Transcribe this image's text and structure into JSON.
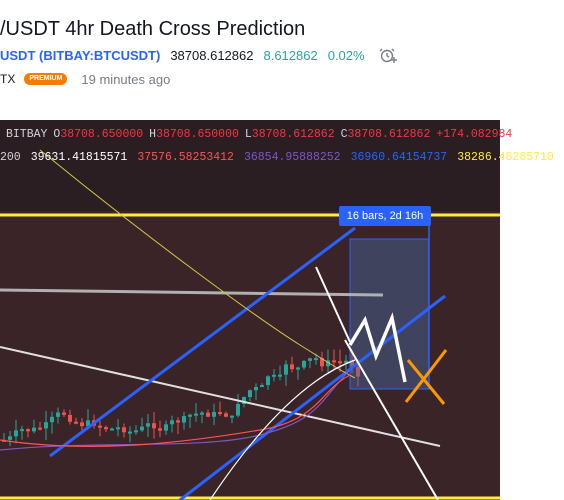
{
  "header": {
    "title": "/USDT 4hr Death Cross Prediction",
    "symbol": "USDT (BITBAY:BTCUSDT)",
    "price": "38708.612862",
    "change": "8.612862",
    "change_pct": "0.02%",
    "author": "TX",
    "badge": "PREMIUM",
    "time_ago": "19 minutes ago",
    "alarm_icon": "alarm-clock-plus-icon"
  },
  "chart": {
    "exchange": "BITBAY",
    "ohlc": {
      "o_label": "O",
      "o": "38708.650000",
      "h_label": "H",
      "h": "38708.650000",
      "l_label": "L",
      "l": "38708.612862",
      "c_label": "C",
      "c": "38708.612862",
      "delta": "+174.082984"
    },
    "ma": {
      "period": "200",
      "v1": "39631.41815571",
      "v2": "37576.58253412",
      "v3": "36854.95888252",
      "v4": "36960.64154737",
      "v5": "38286.48285710"
    },
    "ma_colors": [
      "#ffffff",
      "#ff5252",
      "#7e57c2",
      "#2962ff",
      "#ffeb3b"
    ],
    "range_label": "16 bars, 2d 16h",
    "colors": {
      "background": "#2a1e22",
      "up": "#26a69a",
      "down": "#ef5350",
      "channel": "#2962ff",
      "highlight": "#ffeb3b",
      "x_mark": "#ff9800"
    }
  }
}
